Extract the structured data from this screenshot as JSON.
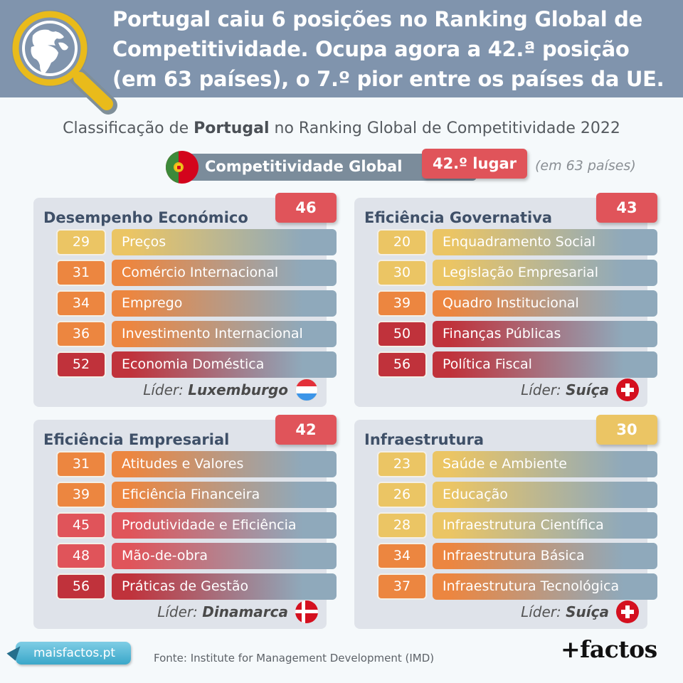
{
  "header": {
    "headline_lines": [
      "Portugal caiu 6 posições no Ranking Global de",
      "Competitividade. Ocupa agora a 42.ª posição",
      "(em 63 países), o 7.º pior entre os países da UE."
    ],
    "icon": "magnifier-globe-icon"
  },
  "subtitle": {
    "prefix": "Classificação de ",
    "country": "Portugal",
    "suffix": " no Ranking Global de Competitividade 2022"
  },
  "global": {
    "label": "Competitividade Global",
    "rank": "42.º lugar",
    "note": "(em 63 países)",
    "flag": "portugal-flag-icon"
  },
  "colors": {
    "header_bg": "#8094ad",
    "title_text": "#3f5068",
    "panel_bg": "#dfe3ea",
    "bar_end": "#8fa9bb",
    "rank_yellow": "#ebc564",
    "rank_orange": "#ec8640",
    "rank_red": "#e0545a",
    "rank_darkred": "#c0323b"
  },
  "panels": [
    {
      "title": "Desempenho Económico",
      "score": "46",
      "score_tier": "red",
      "leader_label": "Líder:",
      "leader": "Luxemburgo",
      "leader_flag": "lu",
      "rows": [
        {
          "rank": "29",
          "label": "Preços",
          "tier": "yellow"
        },
        {
          "rank": "31",
          "label": "Comércio Internacional",
          "tier": "orange"
        },
        {
          "rank": "34",
          "label": "Emprego",
          "tier": "orange"
        },
        {
          "rank": "36",
          "label": "Investimento Internacional",
          "tier": "orange"
        },
        {
          "rank": "52",
          "label": "Economia Doméstica",
          "tier": "darkred"
        }
      ]
    },
    {
      "title": "Eficiência Governativa",
      "score": "43",
      "score_tier": "red",
      "leader_label": "Líder:",
      "leader": "Suíça",
      "leader_flag": "ch",
      "rows": [
        {
          "rank": "20",
          "label": "Enquadramento Social",
          "tier": "yellow"
        },
        {
          "rank": "30",
          "label": "Legislação Empresarial",
          "tier": "yellow"
        },
        {
          "rank": "39",
          "label": "Quadro Institucional",
          "tier": "orange"
        },
        {
          "rank": "50",
          "label": "Finanças Públicas",
          "tier": "darkred"
        },
        {
          "rank": "56",
          "label": "Política Fiscal",
          "tier": "darkred"
        }
      ]
    },
    {
      "title": "Eficiência Empresarial",
      "score": "42",
      "score_tier": "red",
      "leader_label": "Líder:",
      "leader": "Dinamarca",
      "leader_flag": "dk",
      "rows": [
        {
          "rank": "31",
          "label": "Atitudes e Valores",
          "tier": "orange"
        },
        {
          "rank": "39",
          "label": "Eficiência Financeira",
          "tier": "orange"
        },
        {
          "rank": "45",
          "label": "Produtividade e Eficiência",
          "tier": "red"
        },
        {
          "rank": "48",
          "label": "Mão-de-obra",
          "tier": "red"
        },
        {
          "rank": "56",
          "label": "Práticas de Gestão",
          "tier": "darkred"
        }
      ]
    },
    {
      "title": "Infraestrutura",
      "score": "30",
      "score_tier": "yellow",
      "leader_label": "Líder:",
      "leader": "Suíça",
      "leader_flag": "ch",
      "rows": [
        {
          "rank": "23",
          "label": "Saúde e Ambiente",
          "tier": "yellow"
        },
        {
          "rank": "26",
          "label": "Educação",
          "tier": "yellow"
        },
        {
          "rank": "28",
          "label": "Infraestrutura Científica",
          "tier": "yellow"
        },
        {
          "rank": "34",
          "label": "Infraestrutura Básica",
          "tier": "orange"
        },
        {
          "rank": "37",
          "label": "Infraestrutura Tecnológica",
          "tier": "orange"
        }
      ]
    }
  ],
  "footer": {
    "site": "maisfactos.pt",
    "source": "Fonte: Institute for Management Development (IMD)",
    "logo": "+factos"
  }
}
